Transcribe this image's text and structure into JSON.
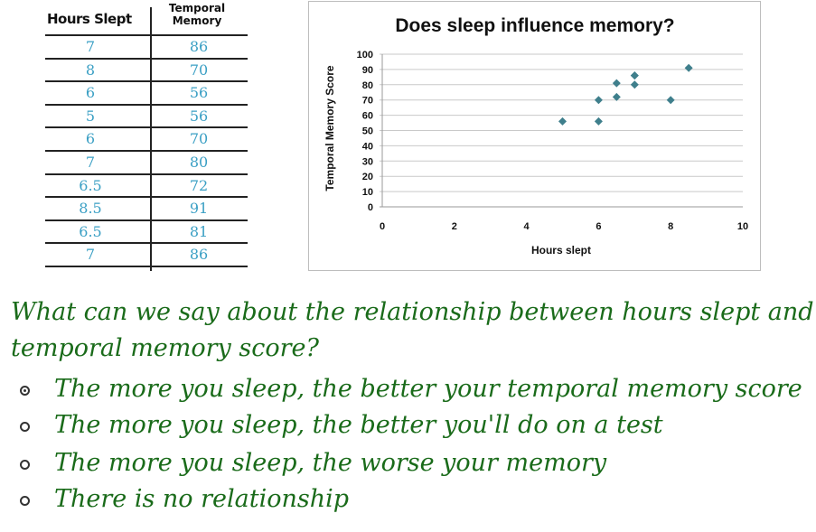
{
  "table": {
    "header_hours": "Hours Slept",
    "header_memory_line1": "Temporal",
    "header_memory_line2": "Memory",
    "rows": [
      {
        "hours": "7",
        "memory": "86"
      },
      {
        "hours": "8",
        "memory": "70"
      },
      {
        "hours": "6",
        "memory": "56"
      },
      {
        "hours": "5",
        "memory": "56"
      },
      {
        "hours": "6",
        "memory": "70"
      },
      {
        "hours": "7",
        "memory": "80"
      },
      {
        "hours": "6.5",
        "memory": "72"
      },
      {
        "hours": "8.5",
        "memory": "91"
      },
      {
        "hours": "6.5",
        "memory": "81"
      },
      {
        "hours": "7",
        "memory": "86"
      }
    ]
  },
  "chart_data": {
    "type": "scatter",
    "title": "Does sleep influence memory?",
    "xlabel": "Hours slept",
    "ylabel": "Temporal Memory Score",
    "xlim": [
      0,
      10
    ],
    "ylim": [
      0,
      100
    ],
    "xticks": [
      "0",
      "2",
      "4",
      "6",
      "8",
      "10"
    ],
    "yticks": [
      "0",
      "10",
      "20",
      "30",
      "40",
      "50",
      "60",
      "70",
      "80",
      "90",
      "100"
    ],
    "grid": "horizontal",
    "marker_color": "#3f7f8c",
    "points": [
      {
        "x": 7,
        "y": 86
      },
      {
        "x": 8,
        "y": 70
      },
      {
        "x": 6,
        "y": 56
      },
      {
        "x": 5,
        "y": 56
      },
      {
        "x": 6,
        "y": 70
      },
      {
        "x": 7,
        "y": 80
      },
      {
        "x": 6.5,
        "y": 72
      },
      {
        "x": 8.5,
        "y": 91
      },
      {
        "x": 6.5,
        "y": 81
      },
      {
        "x": 7,
        "y": 86
      }
    ]
  },
  "question": {
    "line1": "What can we say about the relationship between hours slept and",
    "line2": "temporal memory score?",
    "options": [
      "The more you sleep, the better your temporal memory score",
      "The more you sleep, the better you'll do on a test",
      "The more you sleep, the worse your memory",
      "There is no relationship"
    ],
    "selected_index": 0
  }
}
